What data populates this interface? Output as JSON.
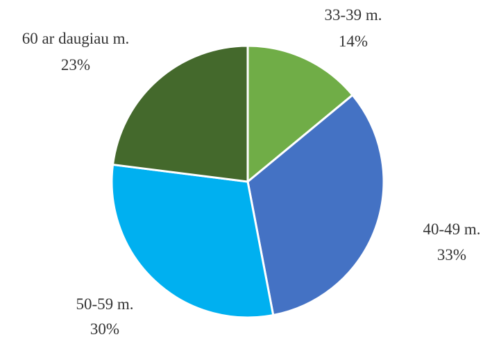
{
  "chart_data": {
    "type": "pie",
    "start_angle_deg": 0,
    "direction": "clockwise",
    "slices": [
      {
        "label": "33-39 m.",
        "value": 14,
        "value_label": "14%",
        "color": "#70AD47"
      },
      {
        "label": "40-49 m.",
        "value": 33,
        "value_label": "33%",
        "color": "#4472C4"
      },
      {
        "label": "50-59 m.",
        "value": 30,
        "value_label": "30%",
        "color": "#00B0F0"
      },
      {
        "label": "60 ar daugiau m.",
        "value": 23,
        "value_label": "23%",
        "color": "#44692C"
      }
    ]
  }
}
